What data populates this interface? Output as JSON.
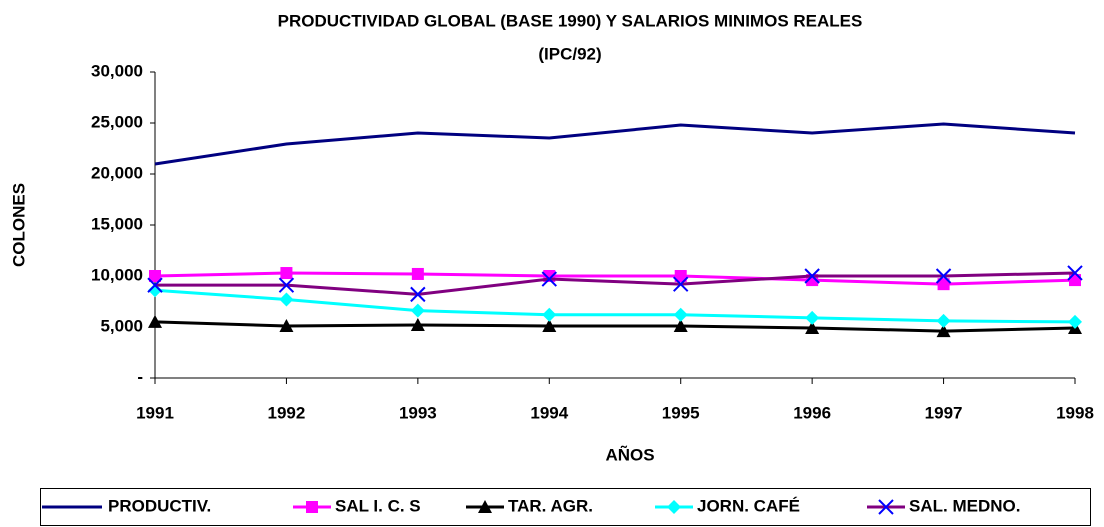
{
  "chart_data": {
    "type": "line",
    "title": [
      "PRODUCTIVIDAD GLOBAL (BASE 1990) Y SALARIOS MINIMOS REALES",
      "(IPC/92)"
    ],
    "x_label": "AÑOS",
    "y_label": "COLONES",
    "categories": [
      "1991",
      "1992",
      "1993",
      "1994",
      "1995",
      "1996",
      "1997",
      "1998"
    ],
    "series": [
      {
        "name": "PRODUCTIV.",
        "color": "#000080",
        "marker": "none",
        "marker_color": "#000080",
        "values": [
          20980,
          22940,
          24020,
          23530,
          24800,
          24020,
          24900,
          24020
        ]
      },
      {
        "name": "SAL I. C. S",
        "color": "#ff00ff",
        "marker": "square",
        "marker_color": "#ff00ff",
        "values": [
          10000,
          10290,
          10200,
          10000,
          10000,
          9600,
          9200,
          9600
        ]
      },
      {
        "name": "TAR. AGR.",
        "color": "#000000",
        "marker": "triangle",
        "marker_color": "#000000",
        "values": [
          5500,
          5100,
          5200,
          5100,
          5100,
          4900,
          4600,
          4900
        ]
      },
      {
        "name": "JORN. CAFÉ",
        "color": "#00ffff",
        "marker": "diamond",
        "marker_color": "#00ffff",
        "values": [
          8600,
          7700,
          6600,
          6200,
          6200,
          5900,
          5600,
          5500
        ]
      },
      {
        "name": "SAL. MEDNO.",
        "color": "#800080",
        "marker": "x",
        "marker_color": "#0000ff",
        "values": [
          9100,
          9100,
          8200,
          9700,
          9200,
          10000,
          10000,
          10300
        ]
      }
    ],
    "ylim": [
      0,
      30000
    ],
    "yticks": [
      {
        "value": 0,
        "label": "-"
      },
      {
        "value": 5000,
        "label": "5,000"
      },
      {
        "value": 10000,
        "label": "10,000"
      },
      {
        "value": 15000,
        "label": "15,000"
      },
      {
        "value": 20000,
        "label": "20,000"
      },
      {
        "value": 25000,
        "label": "25,000"
      },
      {
        "value": 30000,
        "label": "30,000"
      }
    ],
    "grid": false,
    "legend": "bottom"
  }
}
